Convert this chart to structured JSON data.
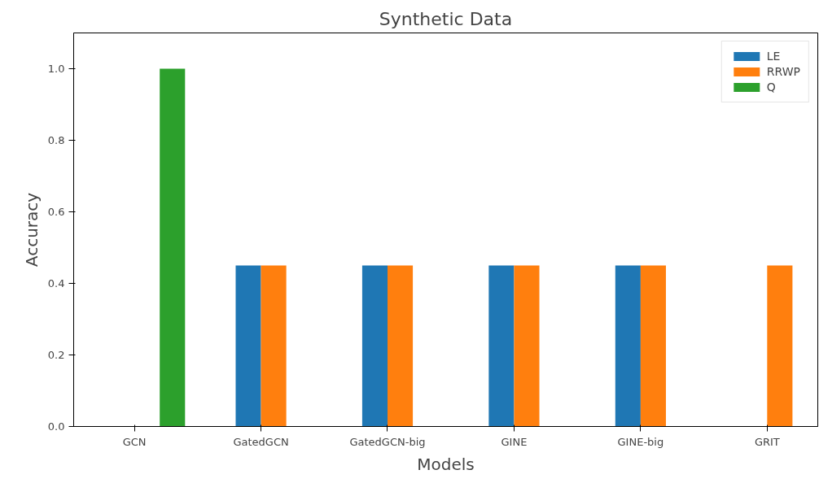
{
  "chart_data": {
    "type": "bar",
    "title": "Synthetic Data",
    "xlabel": "Models",
    "ylabel": "Accuracy",
    "categories": [
      "GCN",
      "GatedGCN",
      "GatedGCN-big",
      "GINE",
      "GINE-big",
      "GRIT"
    ],
    "series": [
      {
        "name": "LE",
        "color": "#1f77b4",
        "values": [
          null,
          0.45,
          0.45,
          0.45,
          0.45,
          null
        ]
      },
      {
        "name": "RRWP",
        "color": "#ff7f0e",
        "values": [
          null,
          0.45,
          0.45,
          0.45,
          0.45,
          0.45
        ]
      },
      {
        "name": "Q",
        "color": "#2ca02c",
        "values": [
          1.0,
          null,
          null,
          null,
          null,
          null
        ]
      }
    ],
    "ylim": [
      0,
      1.1
    ],
    "yticks": [
      {
        "value": 0,
        "label": "0.0"
      },
      {
        "value": 0.2,
        "label": "0.2"
      },
      {
        "value": 0.4,
        "label": "0.4"
      },
      {
        "value": 0.6,
        "label": "0.6"
      },
      {
        "value": 0.8,
        "label": "0.8"
      },
      {
        "value": 1.0,
        "label": "1.0"
      }
    ],
    "grid": false,
    "legend": "top right"
  }
}
